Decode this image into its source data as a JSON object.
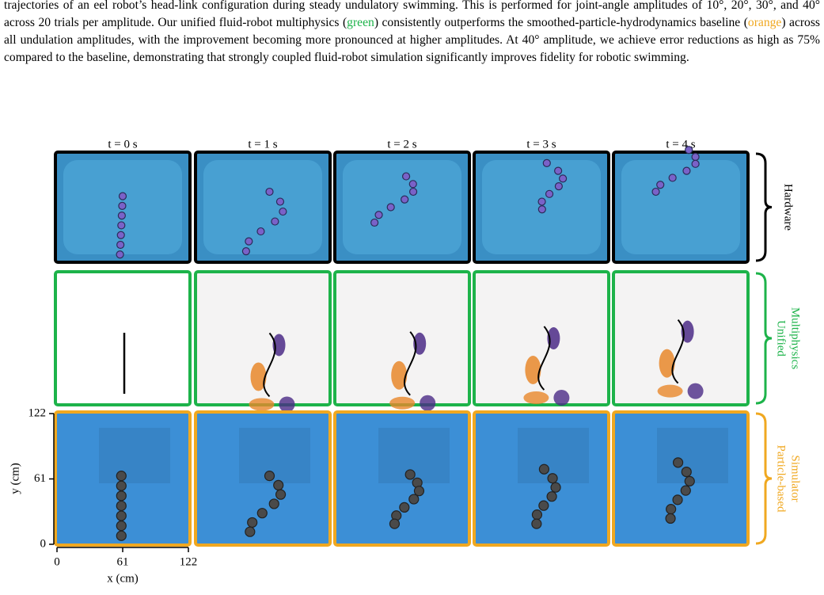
{
  "caption": {
    "parts": [
      "trajectories of an eel robot’s head-link configuration during steady undulatory swimming. This is performed for joint-angle amplitudes of 10°, 20°, 30°, and 40° across 20 trials per amplitude. Our unified fluid-robot multiphysics (",
      "green",
      ") consistently outperforms the smoothed-particle-hydrodynamics baseline (",
      "orange",
      ") across all undulation amplitudes, with the improvement becoming more pronounced at higher amplitudes. At 40° amplitude, we achieve error reductions as high as 75% compared to the baseline, demonstrating that strongly coupled fluid-robot simulation significantly improves fidelity for robotic swimming."
    ],
    "colors": [
      "#000000",
      "#1db34a",
      "#000000",
      "#f0a820",
      "#000000"
    ]
  },
  "figure": {
    "columns": [
      "t = 0 s",
      "t = 1 s",
      "t = 2 s",
      "t = 3 s",
      "t = 4 s"
    ],
    "rows": [
      {
        "lines": [
          "Hardware"
        ],
        "color": "#000000"
      },
      {
        "lines": [
          "Unified",
          "Multiphysics"
        ],
        "color": "#1db34a"
      },
      {
        "lines": [
          "Particle-based",
          "Simulator"
        ],
        "color": "#f0a820"
      }
    ],
    "axes": {
      "x_label": "x (cm)",
      "y_label": "y (cm)",
      "xticks": [
        0,
        61,
        122
      ],
      "yticks": [
        0,
        61,
        122
      ]
    }
  }
}
